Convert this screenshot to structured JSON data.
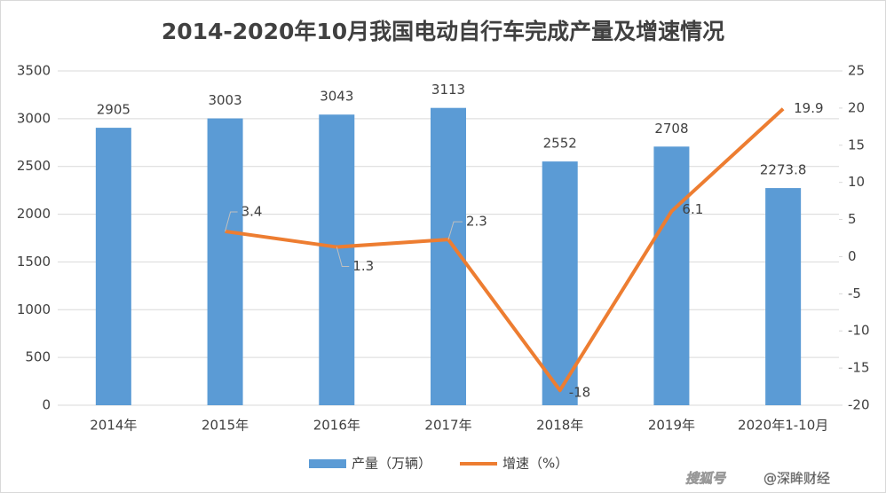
{
  "chart_data": {
    "type": "bar-line",
    "title": "2014-2020年10月我国电动自行车完成产量及增速情况",
    "categories": [
      "2014年",
      "2015年",
      "2016年",
      "2017年",
      "2018年",
      "2019年",
      "2020年1-10月"
    ],
    "series": [
      {
        "name": "产量（万辆）",
        "color": "#5b9bd5",
        "type": "bar",
        "values": [
          2905,
          3003,
          3043,
          3113,
          2552,
          2708,
          2273.8
        ]
      },
      {
        "name": "增速（%）",
        "color": "#ed7d31",
        "type": "line",
        "axis": "y2",
        "values": [
          null,
          3.4,
          1.3,
          2.3,
          -18,
          6.1,
          19.9
        ]
      }
    ],
    "ylim": [
      0,
      3500
    ],
    "yticks": [
      0,
      500,
      1000,
      1500,
      2000,
      2500,
      3000,
      3500
    ],
    "y2lim": [
      -20,
      25
    ],
    "y2ticks": [
      -20,
      -15,
      -10,
      -5,
      0,
      5,
      10,
      15,
      20,
      25
    ],
    "grid": true,
    "legend": "bottom",
    "watermark": [
      "搜狐号",
      "@深眸财经"
    ]
  }
}
